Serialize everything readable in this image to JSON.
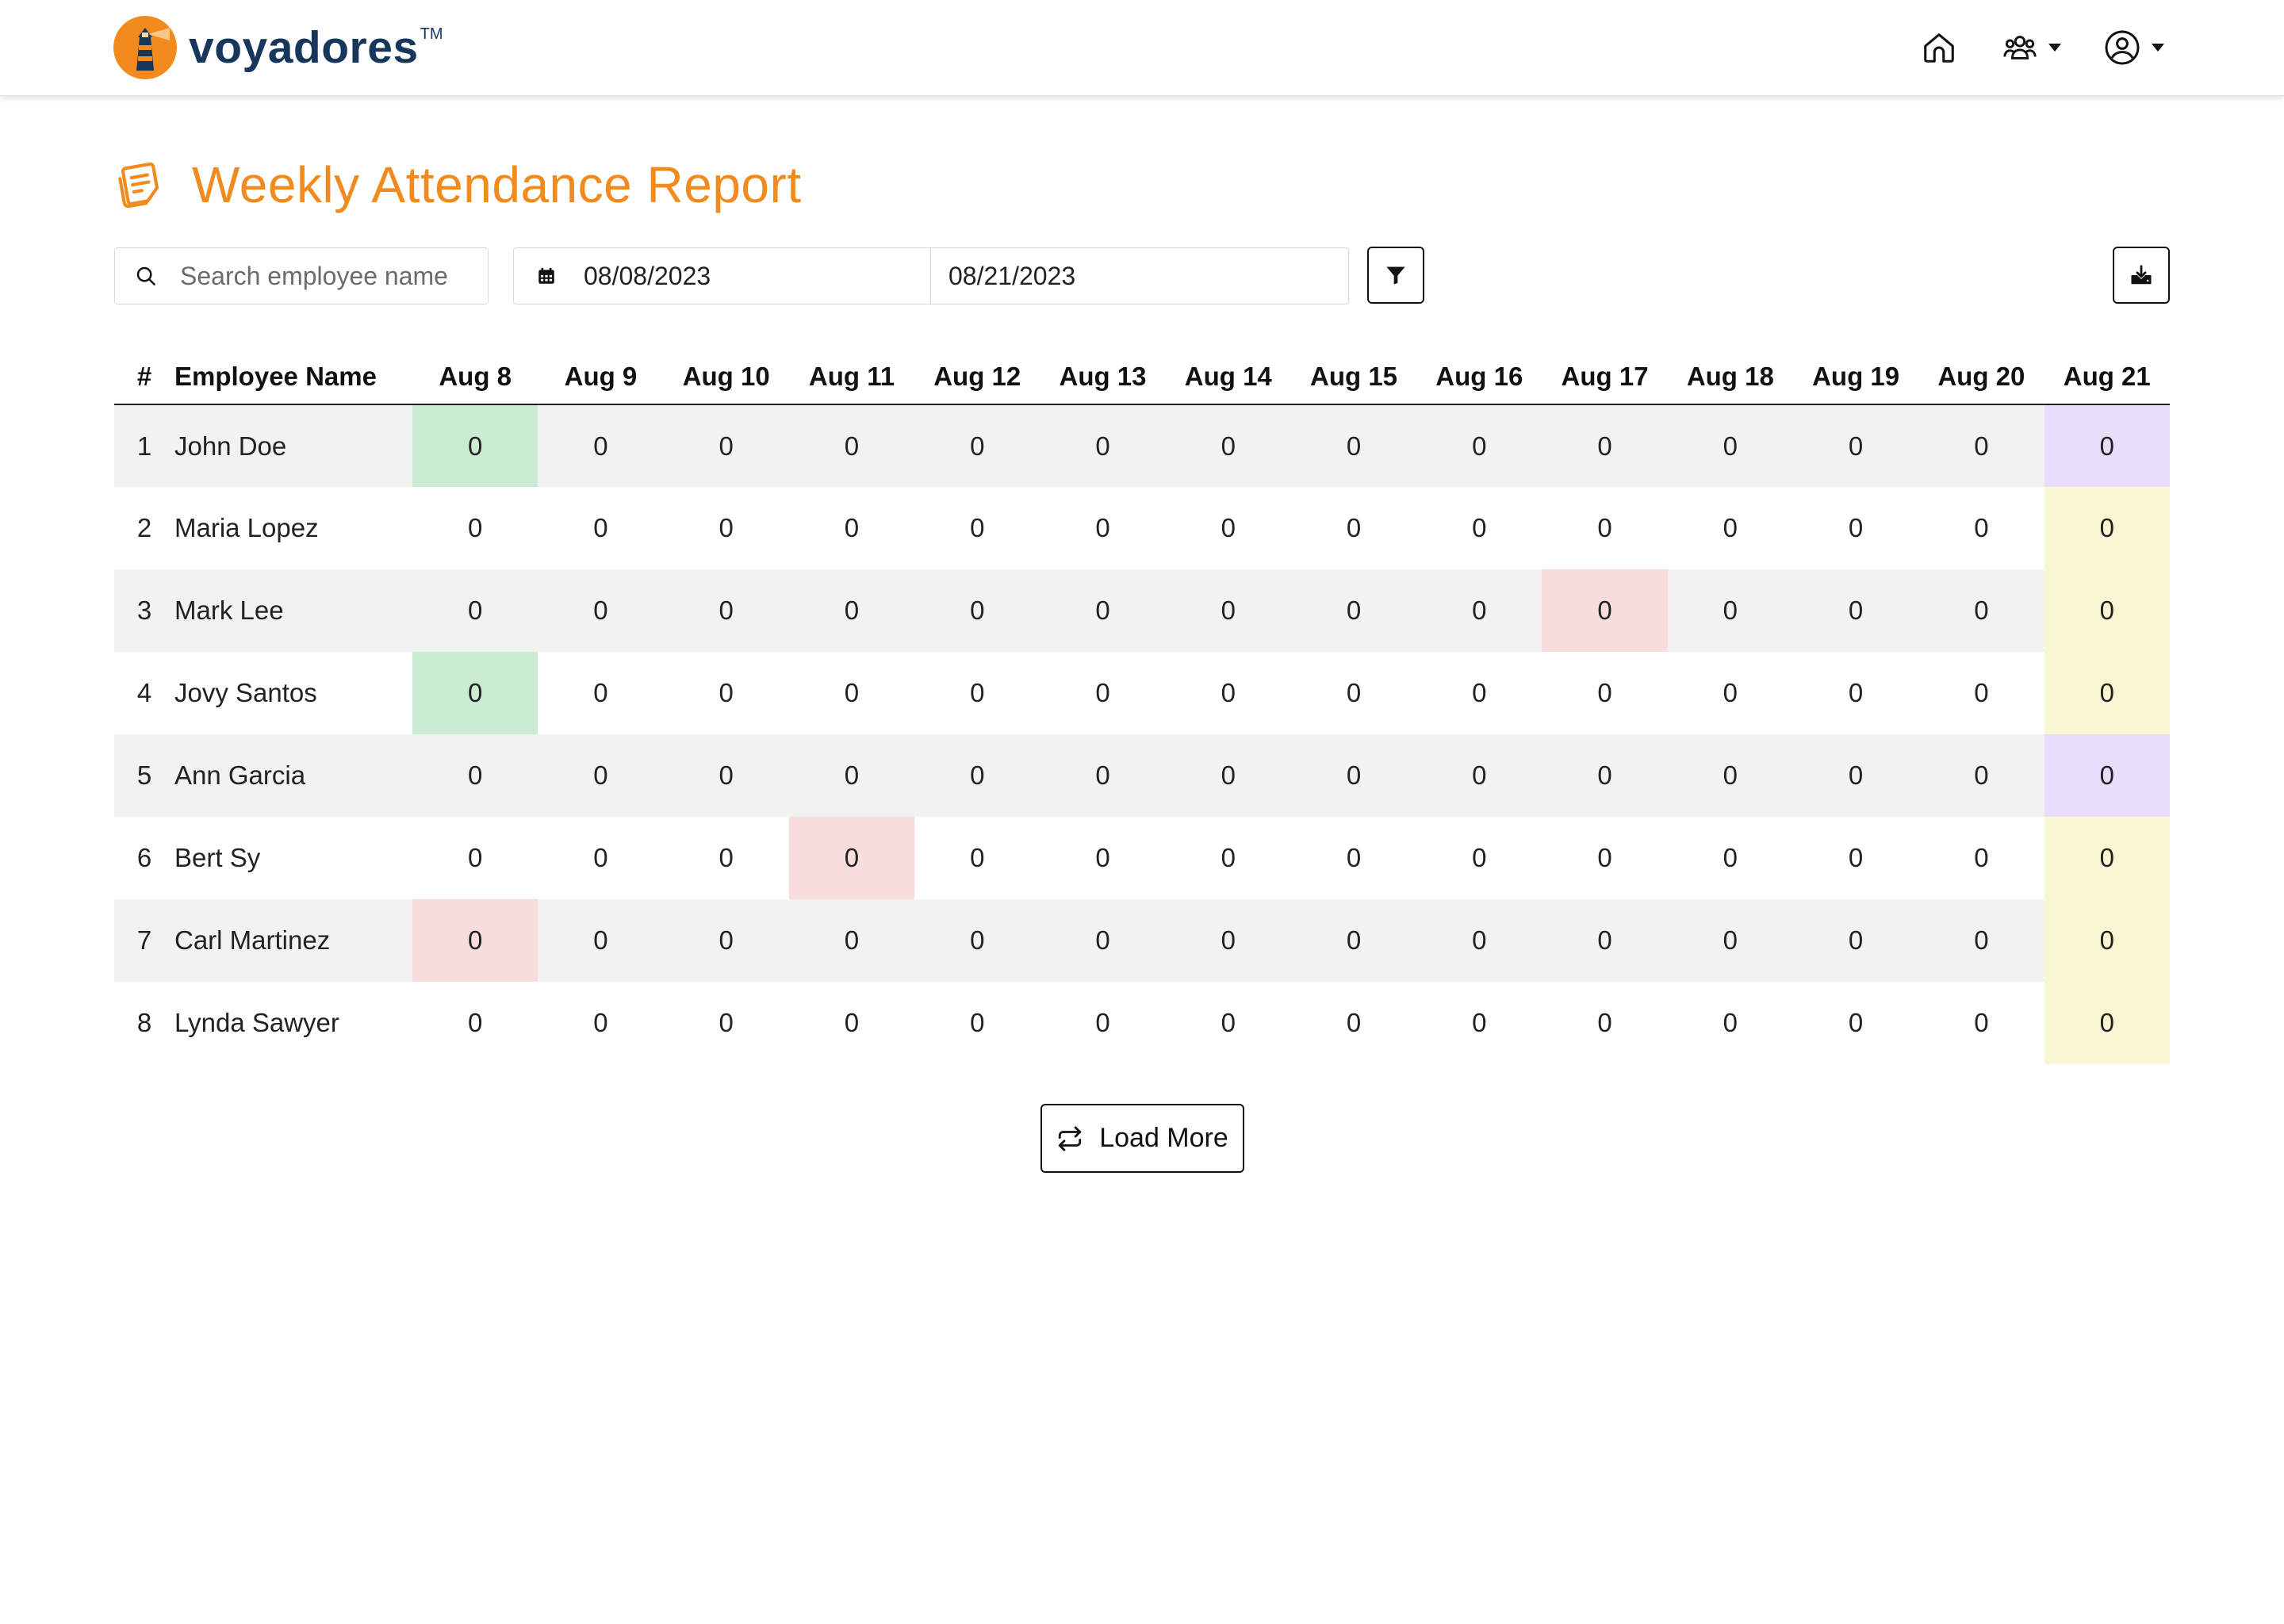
{
  "brand": {
    "name": "voyadores",
    "trademark": "TM"
  },
  "nav": {
    "home_icon": "home-icon",
    "team_icon": "team-icon",
    "account_icon": "user-circle-icon"
  },
  "page": {
    "title": "Weekly Attendance Report",
    "title_icon": "notes-icon"
  },
  "toolbar": {
    "search_placeholder": "Search employee name",
    "search_value": "",
    "date_start": "08/08/2023",
    "date_end": "08/21/2023",
    "filter_icon": "filter-icon",
    "download_icon": "download-icon"
  },
  "table": {
    "headers": {
      "num": "#",
      "name": "Employee Name",
      "days": [
        "Aug 8",
        "Aug 9",
        "Aug 10",
        "Aug 11",
        "Aug 12",
        "Aug 13",
        "Aug 14",
        "Aug 15",
        "Aug 16",
        "Aug 17",
        "Aug 18",
        "Aug 19",
        "Aug 20",
        "Aug 21"
      ]
    },
    "rows": [
      {
        "num": "1",
        "name": "John Doe",
        "values": [
          "0",
          "0",
          "0",
          "0",
          "0",
          "0",
          "0",
          "0",
          "0",
          "0",
          "0",
          "0",
          "0",
          "0"
        ],
        "highlights": {
          "0": "green",
          "13": "purple"
        }
      },
      {
        "num": "2",
        "name": "Maria Lopez",
        "values": [
          "0",
          "0",
          "0",
          "0",
          "0",
          "0",
          "0",
          "0",
          "0",
          "0",
          "0",
          "0",
          "0",
          "0"
        ],
        "highlights": {
          "13": "yellow"
        }
      },
      {
        "num": "3",
        "name": "Mark Lee",
        "values": [
          "0",
          "0",
          "0",
          "0",
          "0",
          "0",
          "0",
          "0",
          "0",
          "0",
          "0",
          "0",
          "0",
          "0"
        ],
        "highlights": {
          "9": "red",
          "13": "yellow"
        }
      },
      {
        "num": "4",
        "name": "Jovy Santos",
        "values": [
          "0",
          "0",
          "0",
          "0",
          "0",
          "0",
          "0",
          "0",
          "0",
          "0",
          "0",
          "0",
          "0",
          "0"
        ],
        "highlights": {
          "0": "green",
          "13": "yellow"
        }
      },
      {
        "num": "5",
        "name": "Ann Garcia",
        "values": [
          "0",
          "0",
          "0",
          "0",
          "0",
          "0",
          "0",
          "0",
          "0",
          "0",
          "0",
          "0",
          "0",
          "0"
        ],
        "highlights": {
          "13": "purple"
        }
      },
      {
        "num": "6",
        "name": "Bert Sy",
        "values": [
          "0",
          "0",
          "0",
          "0",
          "0",
          "0",
          "0",
          "0",
          "0",
          "0",
          "0",
          "0",
          "0",
          "0"
        ],
        "highlights": {
          "3": "red",
          "13": "yellow"
        }
      },
      {
        "num": "7",
        "name": "Carl Martinez",
        "values": [
          "0",
          "0",
          "0",
          "0",
          "0",
          "0",
          "0",
          "0",
          "0",
          "0",
          "0",
          "0",
          "0",
          "0"
        ],
        "highlights": {
          "0": "red",
          "13": "yellow"
        }
      },
      {
        "num": "8",
        "name": "Lynda Sawyer",
        "values": [
          "0",
          "0",
          "0",
          "0",
          "0",
          "0",
          "0",
          "0",
          "0",
          "0",
          "0",
          "0",
          "0",
          "0"
        ],
        "highlights": {
          "13": "yellow"
        }
      }
    ]
  },
  "load_more": {
    "label": "Load More",
    "icon": "repeat-icon"
  },
  "colors": {
    "accent": "#f28a1e",
    "brand_text": "#17365c",
    "highlight_green": "#c9ecd3",
    "highlight_red": "#f9dcdc",
    "highlight_purple": "#e6defa",
    "highlight_yellow": "#f8f6d3",
    "row_stripe": "#f2f2f2"
  }
}
